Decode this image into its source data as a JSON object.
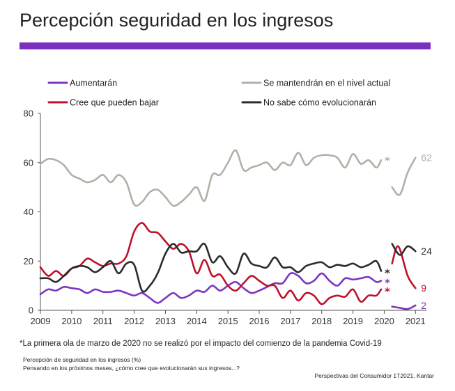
{
  "title": "Percepción seguridad en los ingresos",
  "colors": {
    "accent": "#7a2fbf",
    "aumentaran": "#7b35c1",
    "mantendran": "#b2b0a6",
    "bajar": "#c0102a",
    "no_sabe": "#2b2b2b"
  },
  "footnote": "*La primera ola de marzo de 2020 no se realizó por el impacto del comienzo de la pandemia Covid-19",
  "note1": "Percepción de seguridad en los ingresos (%)",
  "note2": "Pensando en los próximos meses, ¿cómo cree que evolucionarán sus ingresos...?",
  "source": "Perspectivas del Consumidor 1T2021. Kantar",
  "chart_data": {
    "type": "line",
    "xlim": [
      2009,
      2021.35
    ],
    "ylim": [
      0,
      80
    ],
    "yticks": [
      0,
      20,
      40,
      60,
      80
    ],
    "xticks": [
      "2009",
      "2010",
      "2011",
      "2012",
      "2013",
      "2014",
      "2015",
      "2016",
      "2017",
      "2018",
      "2019",
      "2020",
      "2021"
    ],
    "legend_position": "top",
    "gap_marker": "*",
    "series": [
      {
        "name": "Aumentarán",
        "color": "#7b35c1",
        "end_label": "2",
        "segments": [
          [
            [
              2009.0,
              6.5
            ],
            [
              2009.25,
              8.5
            ],
            [
              2009.5,
              8
            ],
            [
              2009.75,
              9.5
            ],
            [
              2010.0,
              9
            ],
            [
              2010.25,
              8.5
            ],
            [
              2010.5,
              7
            ],
            [
              2010.75,
              8.5
            ],
            [
              2011.0,
              7.5
            ],
            [
              2011.25,
              7.5
            ],
            [
              2011.5,
              8
            ],
            [
              2011.75,
              7
            ],
            [
              2012.0,
              6
            ],
            [
              2012.25,
              7
            ],
            [
              2012.5,
              5
            ],
            [
              2012.75,
              3
            ],
            [
              2013.0,
              5
            ],
            [
              2013.25,
              7
            ],
            [
              2013.5,
              5
            ],
            [
              2013.75,
              6
            ],
            [
              2014.0,
              8
            ],
            [
              2014.25,
              7.5
            ],
            [
              2014.5,
              10
            ],
            [
              2014.75,
              8
            ],
            [
              2015.0,
              10
            ],
            [
              2015.25,
              11.5
            ],
            [
              2015.5,
              9
            ],
            [
              2015.75,
              7
            ],
            [
              2016.0,
              8
            ],
            [
              2016.25,
              9.5
            ],
            [
              2016.5,
              11
            ],
            [
              2016.75,
              11
            ],
            [
              2017.0,
              15
            ],
            [
              2017.25,
              14
            ],
            [
              2017.5,
              11
            ],
            [
              2017.75,
              12
            ],
            [
              2018.0,
              15
            ],
            [
              2018.25,
              12
            ],
            [
              2018.5,
              10
            ],
            [
              2018.75,
              13
            ],
            [
              2019.0,
              12.5
            ],
            [
              2019.25,
              13
            ],
            [
              2019.5,
              13.5
            ],
            [
              2019.75,
              11.5
            ],
            [
              2019.9,
              12
            ]
          ],
          [
            [
              2020.25,
              1.5
            ],
            [
              2020.5,
              1
            ],
            [
              2020.75,
              0.5
            ],
            [
              2021.0,
              2
            ]
          ]
        ]
      },
      {
        "name": "Se mantendrán en el nivel actual",
        "color": "#b2b0a6",
        "end_label": "62",
        "segments": [
          [
            [
              2009.0,
              59.5
            ],
            [
              2009.25,
              61.5
            ],
            [
              2009.5,
              61
            ],
            [
              2009.75,
              59
            ],
            [
              2010.0,
              55
            ],
            [
              2010.25,
              53.5
            ],
            [
              2010.5,
              52
            ],
            [
              2010.75,
              53
            ],
            [
              2011.0,
              55
            ],
            [
              2011.25,
              52
            ],
            [
              2011.5,
              55
            ],
            [
              2011.75,
              52
            ],
            [
              2012.0,
              43
            ],
            [
              2012.25,
              44
            ],
            [
              2012.5,
              48
            ],
            [
              2012.75,
              49
            ],
            [
              2013.0,
              46
            ],
            [
              2013.25,
              42.5
            ],
            [
              2013.5,
              44
            ],
            [
              2013.75,
              47
            ],
            [
              2014.0,
              50
            ],
            [
              2014.25,
              44.5
            ],
            [
              2014.5,
              55
            ],
            [
              2014.75,
              55
            ],
            [
              2015.0,
              60
            ],
            [
              2015.25,
              65
            ],
            [
              2015.5,
              57
            ],
            [
              2015.75,
              58
            ],
            [
              2016.0,
              59
            ],
            [
              2016.25,
              60
            ],
            [
              2016.5,
              57
            ],
            [
              2016.75,
              60
            ],
            [
              2017.0,
              59
            ],
            [
              2017.25,
              64
            ],
            [
              2017.5,
              59
            ],
            [
              2017.75,
              62
            ],
            [
              2018.0,
              63
            ],
            [
              2018.25,
              63
            ],
            [
              2018.5,
              62
            ],
            [
              2018.75,
              58
            ],
            [
              2019.0,
              63.5
            ],
            [
              2019.25,
              59.5
            ],
            [
              2019.5,
              61
            ],
            [
              2019.75,
              58
            ],
            [
              2019.9,
              61
            ]
          ],
          [
            [
              2020.25,
              50
            ],
            [
              2020.5,
              47
            ],
            [
              2020.75,
              56
            ],
            [
              2021.0,
              62
            ]
          ]
        ]
      },
      {
        "name": "Cree que pueden bajar",
        "color": "#c0102a",
        "end_label": "9",
        "segments": [
          [
            [
              2009.0,
              17.5
            ],
            [
              2009.25,
              14
            ],
            [
              2009.5,
              16
            ],
            [
              2009.75,
              14
            ],
            [
              2010.0,
              17
            ],
            [
              2010.25,
              18
            ],
            [
              2010.5,
              21
            ],
            [
              2010.75,
              19.5
            ],
            [
              2011.0,
              18
            ],
            [
              2011.25,
              19
            ],
            [
              2011.5,
              19
            ],
            [
              2011.75,
              22
            ],
            [
              2012.0,
              32
            ],
            [
              2012.25,
              35.5
            ],
            [
              2012.5,
              32
            ],
            [
              2012.75,
              31.5
            ],
            [
              2013.0,
              28
            ],
            [
              2013.25,
              25
            ],
            [
              2013.5,
              27
            ],
            [
              2013.75,
              24
            ],
            [
              2014.0,
              15
            ],
            [
              2014.25,
              20.5
            ],
            [
              2014.5,
              14
            ],
            [
              2014.75,
              14.5
            ],
            [
              2015.0,
              10
            ],
            [
              2015.25,
              8
            ],
            [
              2015.5,
              11
            ],
            [
              2015.75,
              14
            ],
            [
              2016.0,
              12
            ],
            [
              2016.25,
              10
            ],
            [
              2016.5,
              10
            ],
            [
              2016.75,
              5
            ],
            [
              2017.0,
              8
            ],
            [
              2017.25,
              4
            ],
            [
              2017.5,
              7
            ],
            [
              2017.75,
              6
            ],
            [
              2018.0,
              2.5
            ],
            [
              2018.25,
              5
            ],
            [
              2018.5,
              6
            ],
            [
              2018.75,
              5.5
            ],
            [
              2019.0,
              8.5
            ],
            [
              2019.25,
              3.5
            ],
            [
              2019.5,
              6
            ],
            [
              2019.75,
              6
            ],
            [
              2019.9,
              8.5
            ]
          ],
          [
            [
              2020.25,
              19
            ],
            [
              2020.45,
              26
            ],
            [
              2020.75,
              14
            ],
            [
              2021.0,
              9
            ]
          ]
        ]
      },
      {
        "name": "No sabe cómo evolucionarán",
        "color": "#2b2b2b",
        "end_label": "24",
        "segments": [
          [
            [
              2009.0,
              13
            ],
            [
              2009.25,
              13
            ],
            [
              2009.5,
              11.5
            ],
            [
              2009.75,
              14
            ],
            [
              2010.0,
              17
            ],
            [
              2010.25,
              18
            ],
            [
              2010.5,
              17.5
            ],
            [
              2010.75,
              15.5
            ],
            [
              2011.0,
              17.5
            ],
            [
              2011.25,
              20
            ],
            [
              2011.5,
              15
            ],
            [
              2011.75,
              19
            ],
            [
              2012.0,
              18.5
            ],
            [
              2012.25,
              8
            ],
            [
              2012.5,
              10
            ],
            [
              2012.75,
              15
            ],
            [
              2013.0,
              23
            ],
            [
              2013.25,
              27
            ],
            [
              2013.5,
              23.5
            ],
            [
              2013.75,
              24
            ],
            [
              2014.0,
              24
            ],
            [
              2014.25,
              27
            ],
            [
              2014.5,
              19.5
            ],
            [
              2014.75,
              22
            ],
            [
              2015.0,
              17.5
            ],
            [
              2015.25,
              15
            ],
            [
              2015.5,
              23
            ],
            [
              2015.75,
              19
            ],
            [
              2016.0,
              18
            ],
            [
              2016.25,
              17.5
            ],
            [
              2016.5,
              21.5
            ],
            [
              2016.75,
              17.5
            ],
            [
              2017.0,
              17.5
            ],
            [
              2017.25,
              15.5
            ],
            [
              2017.5,
              18
            ],
            [
              2017.75,
              19
            ],
            [
              2018.0,
              19.5
            ],
            [
              2018.25,
              17.5
            ],
            [
              2018.5,
              18.5
            ],
            [
              2018.75,
              18
            ],
            [
              2019.0,
              19
            ],
            [
              2019.25,
              17.5
            ],
            [
              2019.5,
              18.5
            ],
            [
              2019.75,
              20
            ],
            [
              2019.9,
              16
            ]
          ],
          [
            [
              2020.25,
              27
            ],
            [
              2020.5,
              22.5
            ],
            [
              2020.75,
              26
            ],
            [
              2021.0,
              24
            ]
          ]
        ]
      }
    ]
  }
}
